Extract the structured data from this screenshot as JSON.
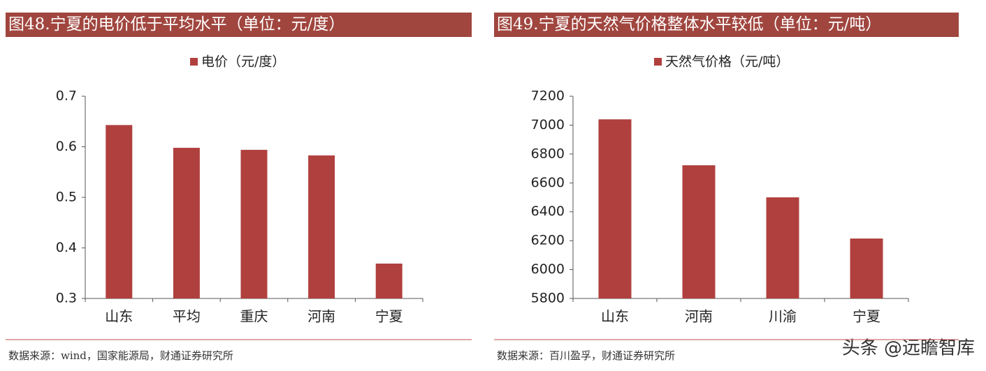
{
  "chart_data": [
    {
      "type": "bar",
      "title": "图48.宁夏的电价低于平均水平（单位：元/度）",
      "categories": [
        "山东",
        "平均",
        "重庆",
        "河南",
        "宁夏"
      ],
      "series": [
        {
          "name": "电价（元/度）",
          "color": "#b0403e",
          "values": [
            0.643,
            0.598,
            0.594,
            0.583,
            0.369
          ]
        }
      ],
      "ylim": [
        0.3,
        0.7
      ],
      "yticks": [
        0.3,
        0.4,
        0.5,
        0.6,
        0.7
      ],
      "source": "数据来源：wind，国家能源局，财通证券研究所"
    },
    {
      "type": "bar",
      "title": "图49.宁夏的天然气价格整体水平较低（单位：元/吨）",
      "categories": [
        "山东",
        "河南",
        "川渝",
        "宁夏"
      ],
      "series": [
        {
          "name": "天然气价格（元/吨）",
          "color": "#b0403e",
          "values": [
            7040,
            6722,
            6500,
            6215
          ]
        }
      ],
      "ylim": [
        5800,
        7200
      ],
      "yticks": [
        5800,
        6000,
        6200,
        6400,
        6600,
        6800,
        7000,
        7200
      ],
      "source": "数据来源：百川盈孚，财通证券研究所"
    }
  ],
  "watermark": "头条 @远瞻智库"
}
